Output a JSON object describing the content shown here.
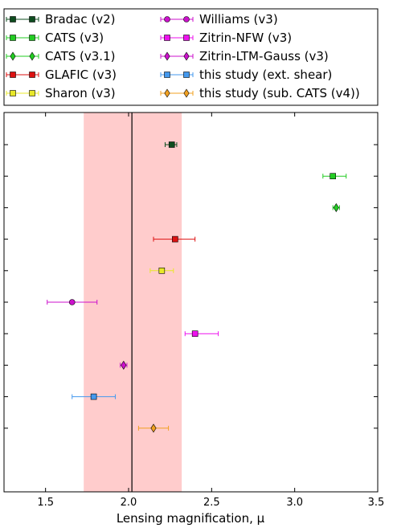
{
  "chart_data": {
    "type": "scatter",
    "orientation": "horizontal-errorbar",
    "xlabel": "Lensing magnification, μ",
    "xlim": [
      1.25,
      3.5
    ],
    "xticks": [
      1.5,
      2.0,
      2.5,
      3.0,
      3.5
    ],
    "xtick_labels": [
      "1.5",
      "2.0",
      "2.5",
      "3.0",
      "3.5"
    ],
    "legend_position": "top",
    "reference": {
      "value": 2.02,
      "band": [
        1.73,
        2.32
      ],
      "line_color": "#000000",
      "band_color": "#ff9a9a"
    },
    "series": [
      {
        "name": "Bradac (v2)",
        "x": 2.26,
        "err_low": 0.04,
        "err_high": 0.03,
        "marker": "square",
        "color": "#0e4d1f"
      },
      {
        "name": "CATS (v3)",
        "x": 3.23,
        "err_low": 0.06,
        "err_high": 0.08,
        "marker": "square",
        "color": "#22cc22"
      },
      {
        "name": "CATS (v3.1)",
        "x": 3.25,
        "err_low": 0.02,
        "err_high": 0.02,
        "marker": "diamond",
        "color": "#22cc22"
      },
      {
        "name": "GLAFIC (v3)",
        "x": 2.28,
        "err_low": 0.13,
        "err_high": 0.12,
        "marker": "square",
        "color": "#dd1111"
      },
      {
        "name": "Sharon (v3)",
        "x": 2.2,
        "err_low": 0.07,
        "err_high": 0.07,
        "marker": "square",
        "color": "#e8e828"
      },
      {
        "name": "Williams (v3)",
        "x": 1.66,
        "err_low": 0.15,
        "err_high": 0.15,
        "marker": "circle",
        "color": "#cc11cc"
      },
      {
        "name": "Zitrin-NFW (v3)",
        "x": 2.4,
        "err_low": 0.06,
        "err_high": 0.14,
        "marker": "square",
        "color": "#ee11ee"
      },
      {
        "name": "Zitrin-LTM-Gauss (v3)",
        "x": 1.97,
        "err_low": 0.02,
        "err_high": 0.02,
        "marker": "diamond",
        "color": "#cc11cc"
      },
      {
        "name": "this study (ext. shear)",
        "x": 1.79,
        "err_low": 0.13,
        "err_high": 0.13,
        "marker": "square",
        "color": "#4499ee"
      },
      {
        "name": "this study (sub. CATS (v4))",
        "x": 2.15,
        "err_low": 0.09,
        "err_high": 0.09,
        "marker": "diamond",
        "color": "#f0a020"
      }
    ]
  }
}
